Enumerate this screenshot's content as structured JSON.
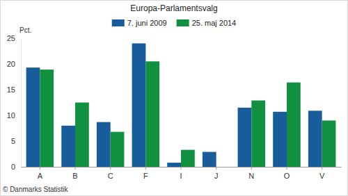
{
  "chart_data": {
    "type": "bar",
    "title": "Europa-Parlamentsvalg",
    "ylabel": "Pct.",
    "annotations": [
      "© Danmarks Statistik"
    ],
    "categories": [
      "A",
      "B",
      "C",
      "F",
      "I",
      "J",
      "N",
      "O",
      "V"
    ],
    "series": [
      {
        "name": "7. juni 2009",
        "color": "#185c9b",
        "values": [
          19.3,
          8.0,
          8.7,
          24.0,
          0.8,
          2.9,
          11.5,
          10.7,
          10.9
        ]
      },
      {
        "name": "25. maj 2014",
        "color": "#11913f",
        "values": [
          18.9,
          12.5,
          6.8,
          20.5,
          3.3,
          null,
          12.9,
          16.4,
          9.0
        ]
      }
    ],
    "ylim": [
      0,
      25
    ],
    "yticks": [
      0,
      5,
      10,
      15,
      20,
      25
    ],
    "grid": false,
    "legend": "top"
  }
}
